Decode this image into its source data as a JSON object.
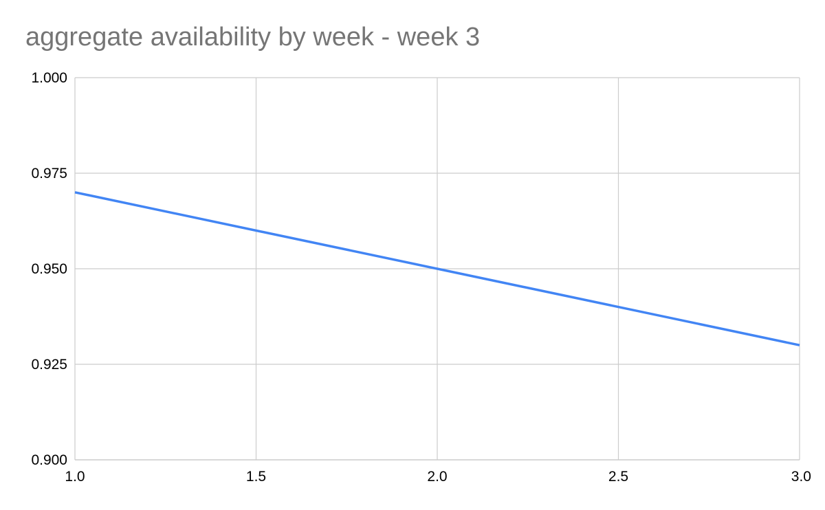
{
  "chart_data": {
    "type": "line",
    "title": "aggregate availability by week - week 3",
    "xlabel": "",
    "ylabel": "",
    "x": [
      1.0,
      2.0,
      3.0
    ],
    "series": [
      {
        "values": [
          0.97,
          0.95,
          0.93
        ],
        "color": "#4285f4"
      }
    ],
    "xlim": [
      1.0,
      3.0
    ],
    "ylim": [
      0.9,
      1.0
    ],
    "x_ticks": [
      "1.0",
      "1.5",
      "2.0",
      "2.5",
      "3.0"
    ],
    "y_ticks": [
      "0.900",
      "0.925",
      "0.950",
      "0.975",
      "1.000"
    ],
    "grid": true,
    "legend": "none"
  },
  "colors": {
    "line": "#4285f4",
    "grid": "#cccccc",
    "title": "#757575"
  }
}
